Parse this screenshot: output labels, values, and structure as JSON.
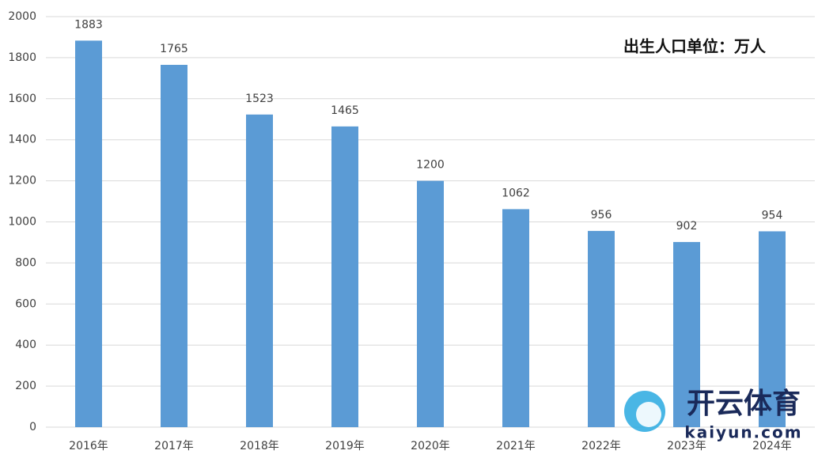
{
  "chart_data": {
    "type": "bar",
    "annotation": "出生人口单位：万人",
    "categories": [
      "2016年",
      "2017年",
      "2018年",
      "2019年",
      "2020年",
      "2021年",
      "2022年",
      "2023年",
      "2024年"
    ],
    "values": [
      1883,
      1765,
      1523,
      1465,
      1200,
      1062,
      956,
      902,
      954
    ],
    "color": "#5b9bd5",
    "ylim": [
      0,
      2000
    ],
    "yticks": [
      0,
      200,
      400,
      600,
      800,
      1000,
      1200,
      1400,
      1600,
      1800,
      2000
    ],
    "grid": true
  },
  "watermark": {
    "brand": "开云体育",
    "site": "kaiyun.com"
  }
}
